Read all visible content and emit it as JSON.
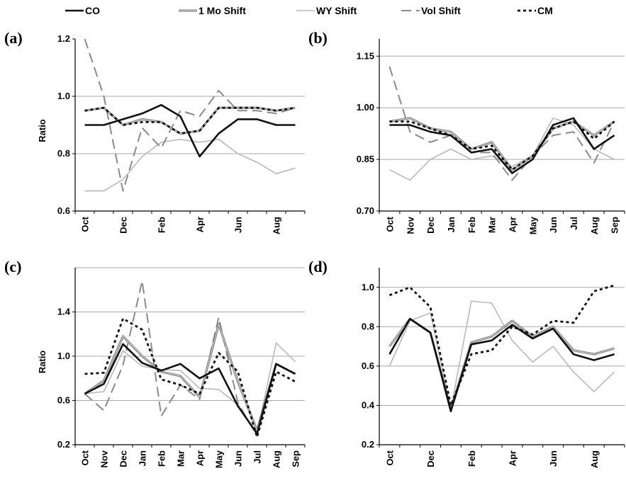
{
  "legend": [
    {
      "name": "CO",
      "color": "#111111",
      "width": 2.6,
      "dash": ""
    },
    {
      "name": "1 Mo Shift",
      "color": "#6e6e6e",
      "width": 3,
      "dash": "",
      "double": true
    },
    {
      "name": "WY Shift",
      "color": "#b9b9b9",
      "width": 1.6,
      "dash": ""
    },
    {
      "name": "Vol Shift",
      "color": "#8a8a8a",
      "width": 2,
      "dash": "14 7"
    },
    {
      "name": "CM",
      "color": "#111111",
      "width": 2.8,
      "dash": "4 4"
    }
  ],
  "chart_data": [
    {
      "type": "line",
      "panel_label": "(a)",
      "ylabel": "Ratio",
      "ylim": [
        0.6,
        1.2
      ],
      "yticks": [
        "0.6",
        "0.8",
        "1.0",
        "1.2"
      ],
      "ytick_values": [
        0.6,
        0.8,
        1.0,
        1.2
      ],
      "gridlines": [
        0.8,
        1.0
      ],
      "categories": [
        "Oct",
        "Nov",
        "Dec",
        "Jan",
        "Feb",
        "Mar",
        "Apr",
        "May",
        "Jun",
        "Jul",
        "Aug",
        "Sep"
      ],
      "xtick_labels": [
        "Oct",
        "",
        "Dec",
        "",
        "Feb",
        "",
        "Apr",
        "",
        "Jun",
        "",
        "Aug",
        ""
      ],
      "series": [
        {
          "name": "CO",
          "values": [
            0.9,
            0.9,
            0.92,
            0.94,
            0.97,
            0.93,
            0.79,
            0.87,
            0.92,
            0.92,
            0.9,
            0.9
          ]
        },
        {
          "name": "1 Mo Shift",
          "values": [
            0.95,
            0.96,
            0.9,
            0.92,
            0.91,
            0.87,
            0.88,
            0.96,
            0.96,
            0.96,
            0.95,
            0.96
          ]
        },
        {
          "name": "WY Shift",
          "values": [
            0.67,
            0.67,
            0.71,
            0.79,
            0.84,
            0.85,
            0.84,
            0.85,
            0.8,
            0.77,
            0.73,
            0.75
          ]
        },
        {
          "name": "Vol Shift",
          "values": [
            1.2,
            1.0,
            0.67,
            0.89,
            0.82,
            0.95,
            0.93,
            1.02,
            0.95,
            0.95,
            0.94,
            0.96
          ]
        },
        {
          "name": "CM",
          "values": [
            0.95,
            0.96,
            0.9,
            0.91,
            0.91,
            0.87,
            0.88,
            0.96,
            0.96,
            0.96,
            0.95,
            0.96
          ]
        }
      ]
    },
    {
      "type": "line",
      "panel_label": "(b)",
      "ylabel": "",
      "ylim": [
        0.7,
        1.2
      ],
      "yticks": [
        "0.70",
        "0.85",
        "1.00",
        "1.15"
      ],
      "ytick_values": [
        0.7,
        0.85,
        1.0,
        1.15
      ],
      "gridlines": [
        0.85,
        1.0,
        1.15
      ],
      "categories": [
        "Oct",
        "Nov",
        "Dec",
        "Jan",
        "Feb",
        "Mar",
        "Apr",
        "May",
        "Jun",
        "Jul",
        "Aug",
        "Sep"
      ],
      "xtick_labels": [
        "Oct",
        "Nov",
        "Dec",
        "Jan",
        "Feb",
        "Mar",
        "Apr",
        "May",
        "Jun",
        "Jul",
        "Aug",
        "Sep"
      ],
      "series": [
        {
          "name": "CO",
          "values": [
            0.95,
            0.95,
            0.93,
            0.92,
            0.87,
            0.88,
            0.81,
            0.85,
            0.95,
            0.97,
            0.88,
            0.92
          ]
        },
        {
          "name": "1 Mo Shift",
          "values": [
            0.96,
            0.97,
            0.94,
            0.93,
            0.88,
            0.9,
            0.82,
            0.86,
            0.94,
            0.96,
            0.92,
            0.96
          ]
        },
        {
          "name": "WY Shift",
          "values": [
            0.82,
            0.79,
            0.85,
            0.88,
            0.85,
            0.86,
            0.83,
            0.86,
            0.97,
            0.95,
            0.88,
            0.85
          ]
        },
        {
          "name": "Vol Shift",
          "values": [
            1.12,
            0.93,
            0.9,
            0.92,
            0.87,
            0.87,
            0.79,
            0.86,
            0.92,
            0.93,
            0.84,
            0.96
          ]
        },
        {
          "name": "CM",
          "values": [
            0.96,
            0.96,
            0.94,
            0.92,
            0.88,
            0.89,
            0.82,
            0.86,
            0.94,
            0.96,
            0.91,
            0.96
          ]
        }
      ]
    },
    {
      "type": "line",
      "panel_label": "(c)",
      "ylabel": "Ratio",
      "ylim": [
        0.2,
        1.8
      ],
      "yticks": [
        "0.2",
        "0.6",
        "1.0",
        "1.4"
      ],
      "ytick_values": [
        0.2,
        0.6,
        1.0,
        1.4
      ],
      "gridlines": [
        0.6,
        1.0,
        1.4,
        1.8
      ],
      "categories": [
        "Oct",
        "Nov",
        "Dec",
        "Jan",
        "Feb",
        "Mar",
        "Apr",
        "May",
        "Jun",
        "Jul",
        "Aug",
        "Sep"
      ],
      "xtick_labels": [
        "Oct",
        "Nov",
        "Dec",
        "Jan",
        "Feb",
        "Mar",
        "Apr",
        "May",
        "Jun",
        "Jul",
        "Aug",
        "Sep"
      ],
      "series": [
        {
          "name": "CO",
          "values": [
            0.66,
            0.75,
            1.11,
            0.94,
            0.87,
            0.93,
            0.8,
            0.89,
            0.55,
            0.3,
            0.93,
            0.84
          ]
        },
        {
          "name": "1 Mo Shift",
          "values": [
            0.66,
            0.78,
            1.18,
            1.0,
            0.86,
            0.82,
            0.63,
            1.29,
            0.77,
            0.33,
            0.93,
            0.84
          ]
        },
        {
          "name": "WY Shift",
          "values": [
            0.66,
            0.68,
            1.05,
            0.91,
            0.88,
            0.87,
            0.71,
            0.7,
            0.56,
            0.3,
            1.12,
            0.95
          ]
        },
        {
          "name": "Vol Shift",
          "values": [
            0.66,
            0.51,
            0.92,
            1.68,
            0.46,
            0.74,
            0.61,
            1.35,
            0.58,
            0.28,
            0.93,
            0.84
          ]
        },
        {
          "name": "CM",
          "values": [
            0.84,
            0.85,
            1.34,
            1.24,
            0.79,
            0.74,
            0.66,
            1.03,
            0.86,
            0.27,
            0.86,
            0.77
          ]
        }
      ]
    },
    {
      "type": "line",
      "panel_label": "(d)",
      "ylabel": "",
      "ylim": [
        0.2,
        1.1
      ],
      "yticks": [
        "0.2",
        "0.4",
        "0.6",
        "0.8",
        "1.0"
      ],
      "ytick_values": [
        0.2,
        0.4,
        0.6,
        0.8,
        1.0
      ],
      "gridlines": [
        0.4,
        0.6,
        0.8,
        1.0
      ],
      "categories": [
        "Oct",
        "Nov",
        "Dec",
        "Jan",
        "Feb",
        "Mar",
        "Apr",
        "May",
        "Jun",
        "Jul",
        "Aug",
        "Sep"
      ],
      "xtick_labels": [
        "Oct",
        "",
        "Dec",
        "",
        "Feb",
        "",
        "Apr",
        "",
        "Jun",
        "",
        "Aug",
        ""
      ],
      "series": [
        {
          "name": "CO",
          "values": [
            0.66,
            0.84,
            0.77,
            0.37,
            0.71,
            0.73,
            0.81,
            0.74,
            0.79,
            0.66,
            0.63,
            0.66
          ]
        },
        {
          "name": "1 Mo Shift",
          "values": [
            0.7,
            0.84,
            0.77,
            0.38,
            0.72,
            0.75,
            0.83,
            0.75,
            0.8,
            0.68,
            0.66,
            0.69
          ]
        },
        {
          "name": "WY Shift",
          "values": [
            0.6,
            0.83,
            0.87,
            0.38,
            0.93,
            0.92,
            0.73,
            0.62,
            0.7,
            0.57,
            0.47,
            0.57
          ]
        },
        {
          "name": "Vol Shift",
          "values": [
            0.7,
            0.84,
            0.77,
            0.38,
            0.72,
            0.75,
            0.83,
            0.75,
            0.8,
            0.68,
            0.66,
            0.69
          ]
        },
        {
          "name": "CM",
          "values": [
            0.96,
            1.0,
            0.9,
            0.4,
            0.66,
            0.68,
            0.8,
            0.76,
            0.83,
            0.82,
            0.98,
            1.01
          ]
        }
      ]
    }
  ]
}
